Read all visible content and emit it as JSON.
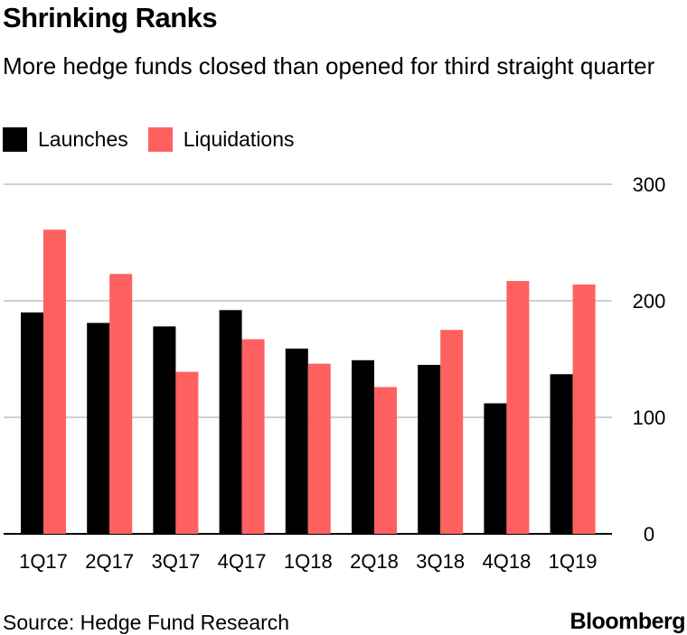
{
  "header": {
    "title": "Shrinking Ranks",
    "subtitle": "More hedge funds closed than opened for third straight quarter"
  },
  "footer": {
    "source": "Source: Hedge Fund Research",
    "brand": "Bloomberg"
  },
  "colors": {
    "launches": "#000000",
    "liquidations": "#ff6060",
    "grid": "#d0d0d0"
  },
  "chart_data": {
    "type": "bar",
    "categories": [
      "1Q17",
      "2Q17",
      "3Q17",
      "4Q17",
      "1Q18",
      "2Q18",
      "3Q18",
      "4Q18",
      "1Q19"
    ],
    "series": [
      {
        "name": "Launches",
        "values": [
          190,
          181,
          178,
          192,
          159,
          149,
          145,
          112,
          137
        ]
      },
      {
        "name": "Liquidations",
        "values": [
          261,
          223,
          139,
          167,
          146,
          126,
          175,
          217,
          214
        ]
      }
    ],
    "yticks": [
      "0",
      "100",
      "200",
      "300"
    ],
    "ylim": [
      0,
      300
    ],
    "grid": true,
    "legend_position": "top-left",
    "yaxis_side": "right"
  }
}
